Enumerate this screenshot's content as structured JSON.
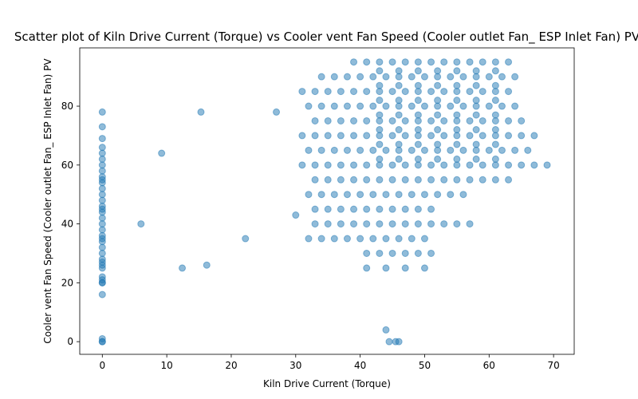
{
  "chart_data": {
    "type": "scatter",
    "title": "Scatter plot of Kiln Drive Current (Torque) vs Cooler vent Fan Speed (Cooler outlet Fan_ ESP Inlet Fan) PV",
    "x_label": "Kiln Drive Current (Torque)",
    "y_label": "Cooler vent Fan Speed (Cooler outlet Fan_ ESP Inlet Fan) PV",
    "color": "#1f77b4",
    "xlim": [
      -3.5,
      73.2
    ],
    "ylim": [
      -4.3,
      99.8
    ],
    "xticks": [
      0,
      10,
      20,
      30,
      40,
      50,
      60,
      70
    ],
    "yticks": [
      0,
      20,
      40,
      60,
      80
    ],
    "x": [
      0,
      0,
      0,
      0,
      0,
      0,
      0,
      0,
      0,
      0,
      0,
      0,
      0,
      0,
      0,
      0,
      0,
      0,
      0,
      0,
      0,
      0,
      0,
      0,
      0,
      0,
      0,
      0,
      0,
      0,
      0,
      0,
      0,
      0,
      0,
      0,
      0,
      6,
      9.2,
      12.4,
      15.3,
      16.2,
      22.2,
      27,
      30,
      44,
      44.5,
      45.5,
      46,
      39,
      41,
      43,
      45,
      47,
      49,
      51,
      53,
      55,
      57,
      59,
      61,
      63,
      34,
      36,
      38,
      40,
      42,
      44,
      46,
      48,
      50,
      52,
      54,
      56,
      58,
      60,
      62,
      64,
      31,
      33,
      35,
      37,
      39,
      41,
      43,
      45,
      47,
      49,
      51,
      53,
      55,
      57,
      59,
      61,
      63,
      32,
      34,
      36,
      38,
      40,
      42,
      44,
      46,
      48,
      50,
      52,
      54,
      56,
      58,
      60,
      62,
      64,
      33,
      35,
      37,
      39,
      41,
      43,
      45,
      47,
      49,
      51,
      53,
      55,
      57,
      59,
      61,
      63,
      65,
      31,
      33,
      35,
      37,
      39,
      41,
      43,
      45,
      47,
      49,
      51,
      53,
      55,
      57,
      59,
      61,
      63,
      65,
      67,
      32,
      34,
      36,
      38,
      40,
      42,
      44,
      46,
      48,
      50,
      52,
      54,
      56,
      58,
      60,
      62,
      64,
      66,
      31,
      33,
      35,
      37,
      39,
      41,
      43,
      45,
      47,
      49,
      51,
      53,
      55,
      57,
      59,
      61,
      63,
      65,
      67,
      69,
      33,
      35,
      37,
      39,
      41,
      43,
      45,
      47,
      49,
      51,
      53,
      55,
      57,
      59,
      61,
      63,
      32,
      34,
      36,
      38,
      40,
      42,
      44,
      46,
      48,
      50,
      52,
      54,
      56,
      33,
      35,
      37,
      39,
      41,
      43,
      45,
      47,
      49,
      51,
      33,
      35,
      37,
      39,
      41,
      43,
      45,
      47,
      49,
      51,
      53,
      55,
      57,
      32,
      34,
      36,
      38,
      40,
      42,
      44,
      46,
      48,
      50,
      41,
      43,
      45,
      47,
      49,
      51,
      41,
      44,
      47,
      50,
      43,
      46,
      49,
      52,
      55,
      58,
      61,
      43,
      46,
      49,
      52,
      55,
      58,
      61,
      43,
      46,
      49,
      52,
      55,
      58,
      61,
      43,
      46,
      49,
      52,
      55,
      58,
      61,
      43,
      46,
      49,
      52,
      55,
      58,
      61,
      43,
      46,
      49,
      52,
      55,
      58,
      61,
      43,
      46,
      49,
      52,
      55,
      58,
      61
    ],
    "values": [
      0,
      0,
      1,
      16,
      20,
      20,
      21,
      22,
      25,
      26,
      27,
      28,
      30,
      32,
      34,
      35,
      36,
      38,
      40,
      42,
      44,
      45,
      46,
      48,
      50,
      52,
      54,
      55,
      56,
      58,
      60,
      62,
      64,
      66,
      69,
      73,
      78,
      40,
      64,
      25,
      78,
      26,
      35,
      78,
      43,
      4,
      0,
      0,
      0,
      95,
      95,
      95,
      95,
      95,
      95,
      95,
      95,
      95,
      95,
      95,
      95,
      95,
      90,
      90,
      90,
      90,
      90,
      90,
      90,
      90,
      90,
      90,
      90,
      90,
      90,
      90,
      90,
      90,
      85,
      85,
      85,
      85,
      85,
      85,
      85,
      85,
      85,
      85,
      85,
      85,
      85,
      85,
      85,
      85,
      85,
      80,
      80,
      80,
      80,
      80,
      80,
      80,
      80,
      80,
      80,
      80,
      80,
      80,
      80,
      80,
      80,
      80,
      75,
      75,
      75,
      75,
      75,
      75,
      75,
      75,
      75,
      75,
      75,
      75,
      75,
      75,
      75,
      75,
      75,
      70,
      70,
      70,
      70,
      70,
      70,
      70,
      70,
      70,
      70,
      70,
      70,
      70,
      70,
      70,
      70,
      70,
      70,
      70,
      65,
      65,
      65,
      65,
      65,
      65,
      65,
      65,
      65,
      65,
      65,
      65,
      65,
      65,
      65,
      65,
      65,
      65,
      60,
      60,
      60,
      60,
      60,
      60,
      60,
      60,
      60,
      60,
      60,
      60,
      60,
      60,
      60,
      60,
      60,
      60,
      60,
      60,
      55,
      55,
      55,
      55,
      55,
      55,
      55,
      55,
      55,
      55,
      55,
      55,
      55,
      55,
      55,
      55,
      50,
      50,
      50,
      50,
      50,
      50,
      50,
      50,
      50,
      50,
      50,
      50,
      50,
      45,
      45,
      45,
      45,
      45,
      45,
      45,
      45,
      45,
      45,
      40,
      40,
      40,
      40,
      40,
      40,
      40,
      40,
      40,
      40,
      40,
      40,
      40,
      35,
      35,
      35,
      35,
      35,
      35,
      35,
      35,
      35,
      35,
      30,
      30,
      30,
      30,
      30,
      30,
      25,
      25,
      25,
      25,
      92,
      92,
      92,
      92,
      92,
      92,
      92,
      87,
      87,
      87,
      87,
      87,
      87,
      87,
      82,
      82,
      82,
      82,
      82,
      82,
      82,
      77,
      77,
      77,
      77,
      77,
      77,
      77,
      72,
      72,
      72,
      72,
      72,
      72,
      72,
      67,
      67,
      67,
      67,
      67,
      67,
      67,
      62,
      62,
      62,
      62,
      62,
      62,
      62
    ]
  }
}
